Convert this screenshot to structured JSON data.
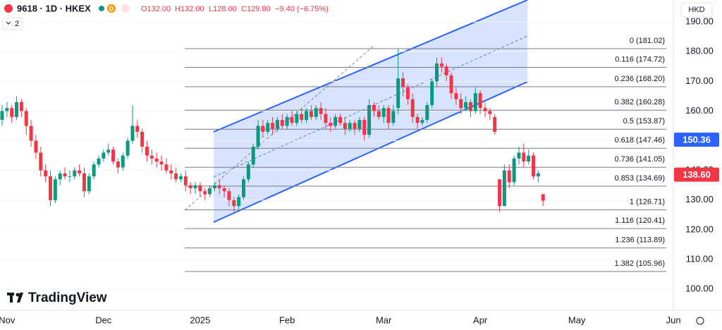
{
  "header": {
    "symbol": "9618 · 1D · HKEX",
    "flag": "D",
    "ohlc": [
      "O132.00",
      "H132.00",
      "L128.00",
      "C129.80"
    ],
    "change": "−9.40 (−6.75%)",
    "indicators": "2",
    "currency": "HKD",
    "logo": "TradingView"
  },
  "chart_data": {
    "type": "candlestick",
    "grid": true,
    "categories": [
      null,
      "Nov",
      null,
      null,
      null,
      null,
      null,
      null,
      null,
      null,
      null,
      null,
      null,
      null,
      null,
      null,
      null,
      null,
      null,
      null,
      null,
      "Dec",
      null,
      null,
      null,
      null,
      null,
      null,
      null,
      null,
      null,
      null,
      null,
      null,
      null,
      null,
      null,
      null,
      null,
      null,
      null,
      "2025",
      null,
      null,
      null,
      null,
      null,
      null,
      null,
      null,
      null,
      null,
      null,
      null,
      null,
      null,
      null,
      null,
      null,
      "Feb",
      null,
      null,
      null,
      null,
      null,
      null,
      null,
      null,
      null,
      null,
      null,
      null,
      null,
      null,
      null,
      null,
      null,
      null,
      null,
      "Mar",
      null,
      null,
      null,
      null,
      null,
      null,
      null,
      null,
      null,
      null,
      null,
      null,
      null,
      null,
      null,
      null,
      null,
      null,
      null,
      "Apr",
      null,
      null,
      null,
      null,
      null,
      null,
      null,
      null,
      null,
      null,
      null,
      null,
      null,
      null,
      null,
      null,
      null,
      null,
      null,
      "May",
      null,
      null,
      null,
      null,
      null,
      null,
      null,
      null,
      null,
      null,
      null,
      null,
      null,
      null,
      null,
      null,
      null,
      null,
      null,
      "Jun"
    ],
    "open": [
      157,
      160,
      161,
      158,
      163,
      160,
      155,
      150,
      146,
      140,
      138,
      130,
      137,
      139,
      138,
      138,
      140,
      139,
      133,
      138,
      142,
      144,
      146,
      147,
      143,
      141,
      145,
      150,
      155,
      153,
      148,
      145,
      144,
      143,
      142,
      140,
      139,
      137,
      138,
      135,
      134,
      135,
      133,
      132,
      134,
      135,
      134,
      133,
      130,
      128,
      131,
      137,
      142,
      148,
      155,
      153,
      156,
      154,
      157,
      155,
      158,
      156,
      159,
      157,
      160,
      158,
      161,
      159,
      156,
      155,
      158,
      156,
      154,
      156,
      154,
      157,
      152,
      162,
      160,
      158,
      161,
      156,
      161,
      171,
      168,
      164,
      158,
      156,
      157,
      162,
      170,
      176,
      175,
      172,
      166,
      164,
      161,
      163,
      160,
      166,
      161,
      160,
      158,
      137,
      128,
      140,
      136,
      144,
      146,
      143,
      145,
      138,
      132,
      null,
      null,
      null,
      null,
      null,
      null,
      null,
      null,
      null,
      null,
      null,
      null,
      null,
      null,
      null,
      null,
      null,
      null,
      null,
      null,
      null,
      null,
      null,
      null,
      null,
      null,
      null
    ],
    "high": [
      162,
      163,
      162,
      165,
      164,
      161,
      157,
      152,
      148,
      142,
      140,
      138,
      140,
      141,
      140,
      141,
      142,
      141,
      139,
      143,
      145,
      147,
      149,
      148,
      144,
      146,
      151,
      162,
      157,
      154,
      150,
      147,
      146,
      145,
      144,
      142,
      141,
      139,
      140,
      136,
      136,
      136,
      134,
      135,
      136,
      137,
      135,
      134,
      131,
      132,
      138,
      143,
      149,
      157,
      157,
      157,
      158,
      158,
      159,
      159,
      160,
      160,
      161,
      161,
      162,
      162,
      163,
      161,
      158,
      159,
      159,
      158,
      157,
      157,
      158,
      158,
      164,
      163,
      162,
      162,
      162,
      162,
      181,
      173,
      169,
      166,
      159,
      158,
      163,
      171,
      178,
      178,
      176,
      173,
      168,
      166,
      165,
      164,
      168,
      167,
      163,
      161,
      159,
      137,
      142,
      142,
      145,
      148,
      149,
      147,
      146,
      140,
      132,
      null,
      null,
      null,
      null,
      null,
      null,
      null,
      null,
      null,
      null,
      null,
      null,
      null,
      null,
      null,
      null,
      null,
      null,
      null,
      null,
      null,
      null,
      null,
      null,
      null,
      null,
      null
    ],
    "low": [
      155,
      158,
      156,
      157,
      158,
      152,
      148,
      144,
      138,
      136,
      128,
      129,
      135,
      137,
      136,
      137,
      138,
      131,
      132,
      137,
      141,
      143,
      145,
      142,
      139,
      140,
      144,
      149,
      151,
      146,
      143,
      142,
      141,
      140,
      139,
      137,
      136,
      136,
      133,
      132,
      132,
      131,
      130,
      131,
      133,
      132,
      131,
      128,
      126,
      127,
      130,
      136,
      141,
      147,
      151,
      152,
      152,
      153,
      154,
      154,
      155,
      155,
      156,
      156,
      157,
      157,
      157,
      154,
      153,
      154,
      155,
      152,
      153,
      152,
      153,
      150,
      151,
      158,
      157,
      156,
      154,
      155,
      159,
      165,
      162,
      156,
      154,
      155,
      156,
      161,
      168,
      173,
      170,
      164,
      162,
      159,
      160,
      158,
      159,
      159,
      158,
      157,
      152,
      126,
      128,
      134,
      135,
      142,
      141,
      142,
      137,
      136,
      128,
      null,
      null,
      null,
      null,
      null,
      null,
      null,
      null,
      null,
      null,
      null,
      null,
      null,
      null,
      null,
      null,
      null,
      null,
      null,
      null,
      null,
      null,
      null,
      null,
      null,
      null,
      null
    ],
    "close": [
      160,
      161,
      158,
      163,
      160,
      155,
      150,
      146,
      140,
      138,
      130,
      137,
      139,
      138,
      138,
      140,
      139,
      133,
      138,
      142,
      144,
      146,
      147,
      143,
      141,
      145,
      150,
      155,
      153,
      148,
      145,
      144,
      143,
      142,
      140,
      139,
      137,
      138,
      135,
      134,
      135,
      133,
      132,
      134,
      135,
      134,
      133,
      130,
      128,
      131,
      137,
      142,
      148,
      155,
      153,
      156,
      154,
      157,
      155,
      158,
      156,
      159,
      157,
      160,
      158,
      161,
      159,
      156,
      155,
      158,
      156,
      154,
      156,
      154,
      157,
      152,
      162,
      160,
      158,
      161,
      156,
      160,
      171,
      168,
      164,
      158,
      156,
      157,
      162,
      170,
      176,
      175,
      172,
      166,
      164,
      161,
      163,
      160,
      166,
      161,
      160,
      159,
      153,
      128,
      140,
      136,
      144,
      146,
      143,
      145,
      138,
      139,
      129.8,
      null,
      null,
      null,
      null,
      null,
      null,
      null,
      null,
      null,
      null,
      null,
      null,
      null,
      null,
      null,
      null,
      null,
      null,
      null,
      null,
      null,
      null,
      null,
      null,
      null,
      null,
      null
    ],
    "up_color": "#089981",
    "down_color": "#f23645",
    "ylim": [
      92.9,
      197.4
    ],
    "yticks": [
      {
        "value": 100,
        "label": "100.00"
      },
      {
        "value": 110,
        "label": "110.00"
      },
      {
        "value": 120,
        "label": "120.00"
      },
      {
        "value": 130,
        "label": "130.00"
      },
      {
        "value": 140,
        "label": "140.00"
      },
      {
        "value": 150,
        "label": "150.00"
      },
      {
        "value": 160,
        "label": "160.00"
      },
      {
        "value": 170,
        "label": "170.00"
      },
      {
        "value": 180,
        "label": "180.00"
      },
      {
        "value": 190,
        "label": "190.00"
      }
    ],
    "fib_levels": [
      {
        "value": 181.02,
        "label": "0 (181.02)"
      },
      {
        "value": 174.72,
        "label": "0.116 (174.72)"
      },
      {
        "value": 168.2,
        "label": "0.236 (168.20)"
      },
      {
        "value": 160.28,
        "label": "0.382 (160.28)"
      },
      {
        "value": 153.87,
        "label": "0.5 (153.87)"
      },
      {
        "value": 147.46,
        "label": "0.618 (147.46)"
      },
      {
        "value": 141.05,
        "label": "0.736 (141.05)"
      },
      {
        "value": 134.69,
        "label": "0.853 (134.69)"
      },
      {
        "value": 126.71,
        "label": "1 (126.71)"
      },
      {
        "value": 120.41,
        "label": "1.116 (120.41)"
      },
      {
        "value": 113.89,
        "label": "1.236 (113.89)"
      },
      {
        "value": 105.96,
        "label": "1.382 (105.96)"
      }
    ],
    "price_labels": [
      {
        "value": 150.36,
        "label": "150.36",
        "color": "#2962ff"
      },
      {
        "value": 138.6,
        "label": "138.60",
        "color": "#f23645"
      }
    ]
  }
}
